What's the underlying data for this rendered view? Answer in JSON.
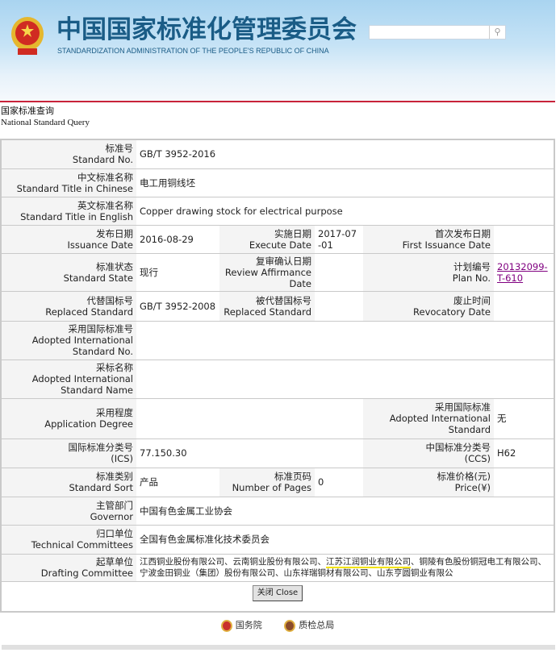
{
  "header": {
    "title_cn": "中国国家标准化管理委员会",
    "title_en": "STANDARDIZATION ADMINISTRATION OF THE PEOPLE'S REPUBLIC OF CHINA",
    "search_value": ""
  },
  "breadcrumb": {
    "cn": "国家标准查询",
    "en": "National Standard Query"
  },
  "fields": {
    "standard_no": {
      "cn": "标准号",
      "en": "Standard No.",
      "value": "GB/T 3952-2016"
    },
    "title_cn": {
      "cn": "中文标准名称",
      "en": "Standard Title in Chinese",
      "value": "电工用铜线坯"
    },
    "title_en": {
      "cn": "英文标准名称",
      "en": "Standard Title in English",
      "value": "Copper drawing stock for electrical purpose"
    },
    "issuance_date": {
      "cn": "发布日期",
      "en": "Issuance Date",
      "value": "2016-08-29"
    },
    "execute_date": {
      "cn": "实施日期",
      "en": "Execute Date",
      "value": "2017-07-01"
    },
    "first_issuance_date": {
      "cn": "首次发布日期",
      "en": "First Issuance Date",
      "value": ""
    },
    "standard_state": {
      "cn": "标准状态",
      "en": "Standard State",
      "value": "现行"
    },
    "review_date": {
      "cn": "复审确认日期",
      "en": "Review Affirmance Date",
      "value": ""
    },
    "plan_no": {
      "cn": "计划编号",
      "en": "Plan No.",
      "value": "20132099-T-610"
    },
    "replaced_standard": {
      "cn": "代替国标号",
      "en": "Replaced Standard",
      "value": "GB/T 3952-2008"
    },
    "replaced_by": {
      "cn": "被代替国标号",
      "en": "Replaced Standard",
      "value": ""
    },
    "revocatory_date": {
      "cn": "废止时间",
      "en": "Revocatory Date",
      "value": ""
    },
    "adopted_intl_no": {
      "cn": "采用国际标准号",
      "en": "Adopted International Standard No.",
      "value": ""
    },
    "adopted_intl_name": {
      "cn": "采标名称",
      "en": "Adopted International Standard Name",
      "value": ""
    },
    "application_degree": {
      "cn": "采用程度",
      "en": "Application Degree",
      "value": ""
    },
    "adopted_intl": {
      "cn": "采用国际标准",
      "en": "Adopted International Standard",
      "value": "无"
    },
    "ics": {
      "cn": "国际标准分类号",
      "en": "(ICS)",
      "value": "77.150.30"
    },
    "ccs": {
      "cn": "中国标准分类号",
      "en": "(CCS)",
      "value": "H62"
    },
    "sort": {
      "cn": "标准类别",
      "en": "Standard Sort",
      "value": "产品"
    },
    "pages": {
      "cn": "标准页码",
      "en": "Number of Pages",
      "value": "0"
    },
    "price": {
      "cn": "标准价格(元)",
      "en": "Price(¥)",
      "value": ""
    },
    "governor": {
      "cn": "主管部门",
      "en": "Governor",
      "value": "中国有色金属工业协会"
    },
    "tech_committee": {
      "cn": "归口单位",
      "en": "Technical Committees",
      "value": "全国有色金属标准化技术委员会"
    },
    "drafting": {
      "cn": "起草单位",
      "en": "Drafting Committee",
      "value_a": "江西铜业股份有限公司、云南铜业股份有限公司、",
      "value_hl": "江苏江润铜业有限公司",
      "value_b": "、铜陵有色股份铜冠电工有限公司、宁波金田铜业（集团）股份有限公司、山东祥瑞铜材有限公司、山东亨圆铜业有限公"
    }
  },
  "close_label": "关闭 Close",
  "footer": {
    "links": [
      "国务院",
      "质检总局"
    ]
  },
  "colors": {
    "brand": "#1a5c86",
    "rule": "#c8233a",
    "link": "#800080"
  }
}
